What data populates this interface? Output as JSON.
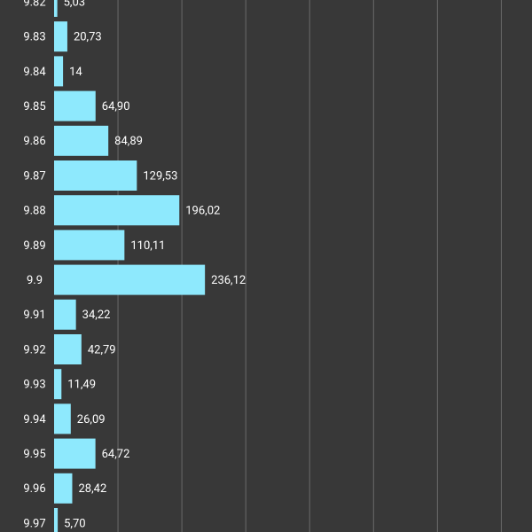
{
  "chart_data": {
    "type": "hbar",
    "categories": [
      "9.82",
      "9.83",
      "9.84",
      "9.85",
      "9.86",
      "9.87",
      "9.88",
      "9.89",
      "9.9",
      "9.91",
      "9.92",
      "9.93",
      "9.94",
      "9.95",
      "9.96",
      "9.97"
    ],
    "values": [
      5.03,
      20.73,
      14,
      64.9,
      84.89,
      129.53,
      196.02,
      110.11,
      236.12,
      34.22,
      42.79,
      11.49,
      26.09,
      64.72,
      28.42,
      5.7
    ],
    "value_labels": [
      "5,03",
      "20,73",
      "14",
      "64,90",
      "84,89",
      "129,53",
      "196,02",
      "110,11",
      "236,12",
      "34,22",
      "42,79",
      "11,49",
      "26,09",
      "64,72",
      "28,42",
      "5,70"
    ],
    "color": "#8ee9fd",
    "xlim": [
      0,
      748
    ],
    "xticks": [
      0,
      100,
      200,
      300,
      400,
      500,
      600,
      700
    ],
    "grid": true
  }
}
